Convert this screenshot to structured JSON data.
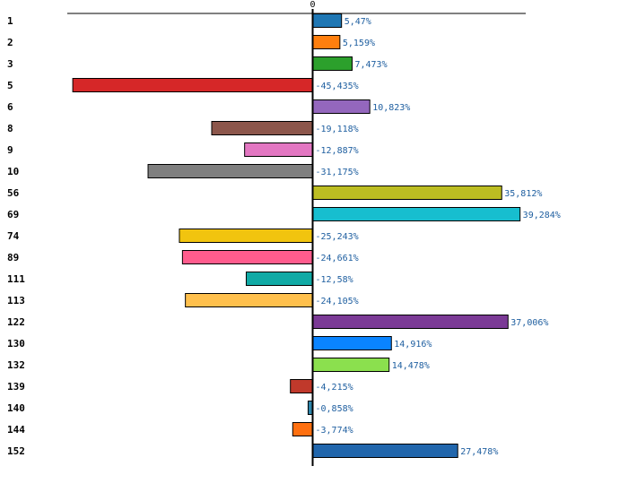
{
  "chart_data": {
    "type": "bar",
    "orientation": "horizontal",
    "title": "",
    "xlabel": "",
    "ylabel": "",
    "xlim": [
      -47,
      44
    ],
    "zero_tick_label": "0",
    "categories": [
      "1",
      "2",
      "3",
      "5",
      "6",
      "8",
      "9",
      "10",
      "56",
      "69",
      "74",
      "89",
      "111",
      "113",
      "122",
      "130",
      "132",
      "139",
      "140",
      "144",
      "152"
    ],
    "values": [
      5.47,
      5.159,
      7.473,
      -45.435,
      10.823,
      -19.118,
      -12.887,
      -31.175,
      35.812,
      39.284,
      -25.243,
      -24.661,
      -12.58,
      -24.105,
      37.006,
      14.916,
      14.478,
      -4.215,
      -0.858,
      -3.774,
      27.478
    ],
    "value_labels": [
      "5,47%",
      "5,159%",
      "7,473%",
      "-45,435%",
      "10,823%",
      "-19,118%",
      "-12,887%",
      "-31,175%",
      "35,812%",
      "39,284%",
      "-25,243%",
      "-24,661%",
      "-12,58%",
      "-24,105%",
      "37,006%",
      "14,916%",
      "14,478%",
      "-4,215%",
      "-0,858%",
      "-3,774%",
      "27,478%"
    ],
    "colors": [
      "#1f77b4",
      "#ff7f0e",
      "#2ca02c",
      "#d62728",
      "#9467bd",
      "#8c564b",
      "#e377c2",
      "#7f7f7f",
      "#bcbd22",
      "#17becf",
      "#f1c40f",
      "#ff5c8d",
      "#10aaa5",
      "#ffc04d",
      "#7b3a96",
      "#0a84ff",
      "#8be04e",
      "#c0392b",
      "#2e86ab",
      "#ff7010",
      "#2166ac"
    ],
    "value_label_color": "#1f5fa0",
    "axis_color": "#000000",
    "grid": false,
    "legend": "none"
  }
}
